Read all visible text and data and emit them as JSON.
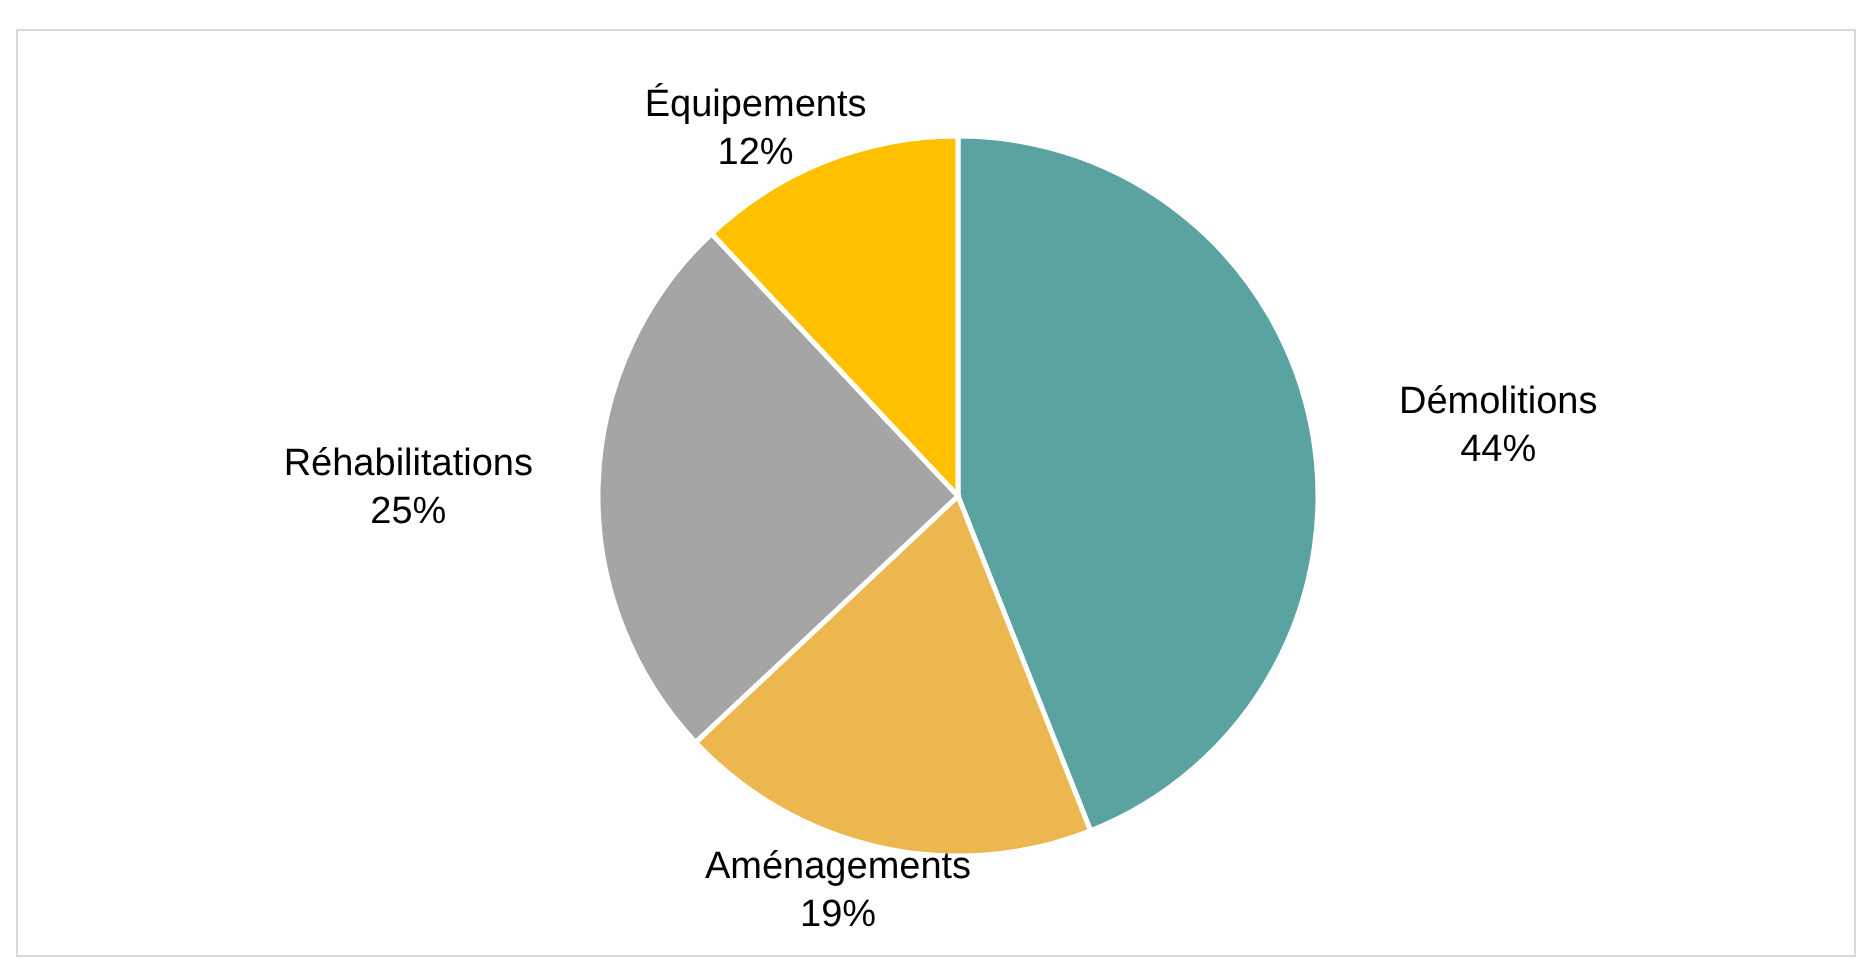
{
  "chart_data": {
    "type": "pie",
    "categories": [
      "Démolitions",
      "Aménagements",
      "Réhabilitations",
      "Équipements"
    ],
    "values": [
      44,
      19,
      25,
      12
    ],
    "colors": [
      "#5ba3a0",
      "#ebb74e",
      "#a5a5a5",
      "#ffc000"
    ],
    "value_labels": [
      "44%",
      "19%",
      "25%",
      "12%"
    ]
  }
}
